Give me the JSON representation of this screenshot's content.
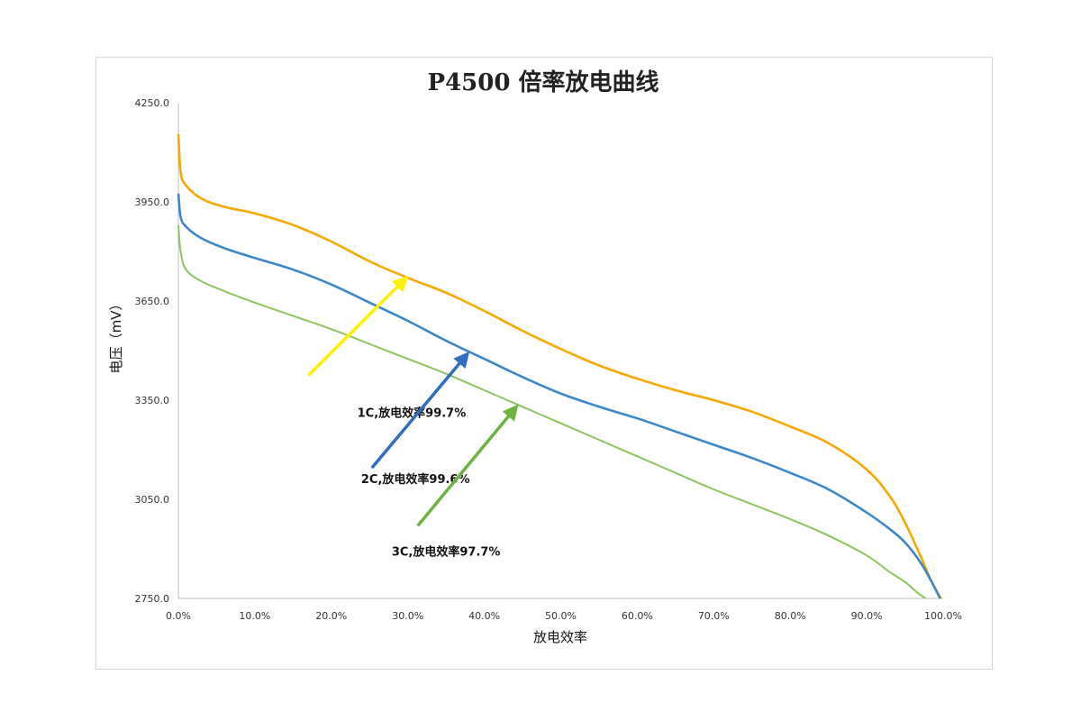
{
  "chart_data": {
    "type": "line",
    "title": "P4500 倍率放电曲线",
    "xlabel": "放电效率",
    "ylabel": "电压（mV）",
    "xlim": [
      0,
      100
    ],
    "ylim": [
      2750,
      4250
    ],
    "x_ticks": [
      "0.0%",
      "10.0%",
      "20.0%",
      "30.0%",
      "40.0%",
      "50.0%",
      "60.0%",
      "70.0%",
      "80.0%",
      "90.0%",
      "100.0%"
    ],
    "y_ticks": [
      "4250.0",
      "3950.0",
      "3650.0",
      "3350.0",
      "3050.0",
      "2750.0"
    ],
    "grid": false,
    "legend": "none",
    "series": [
      {
        "color": "#F5A800",
        "x": [
          0,
          0.3,
          1,
          3,
          6,
          10,
          15,
          20,
          25,
          30,
          35,
          40,
          45,
          50,
          55,
          60,
          65,
          70,
          75,
          80,
          85,
          90,
          93,
          95,
          97,
          98.5,
          99.7
        ],
        "y": [
          4155,
          4040,
          4000,
          3960,
          3935,
          3915,
          3880,
          3830,
          3770,
          3720,
          3675,
          3620,
          3560,
          3505,
          3455,
          3415,
          3380,
          3350,
          3315,
          3270,
          3220,
          3140,
          3060,
          2980,
          2880,
          2800,
          2750
        ]
      },
      {
        "color": "#3B87C8",
        "x": [
          0,
          0.3,
          1,
          3,
          6,
          10,
          15,
          20,
          25,
          30,
          35,
          40,
          45,
          50,
          55,
          60,
          65,
          70,
          75,
          80,
          85,
          90,
          93,
          95,
          97,
          98.5,
          99.6
        ],
        "y": [
          3975,
          3905,
          3875,
          3840,
          3810,
          3780,
          3745,
          3700,
          3645,
          3590,
          3530,
          3475,
          3420,
          3370,
          3330,
          3295,
          3255,
          3215,
          3175,
          3130,
          3080,
          3010,
          2960,
          2920,
          2860,
          2800,
          2750
        ]
      },
      {
        "color": "#8CC460",
        "x": [
          0,
          0.3,
          1,
          3,
          6,
          10,
          15,
          20,
          25,
          30,
          35,
          40,
          45,
          50,
          55,
          60,
          65,
          70,
          75,
          80,
          85,
          90,
          93,
          95,
          96.5,
          97.7
        ],
        "y": [
          3880,
          3800,
          3745,
          3710,
          3680,
          3645,
          3605,
          3565,
          3520,
          3475,
          3430,
          3380,
          3330,
          3280,
          3230,
          3180,
          3130,
          3080,
          3035,
          2990,
          2940,
          2880,
          2830,
          2800,
          2770,
          2750
        ]
      }
    ],
    "annotations": [
      {
        "text": "1C,放电效率99.7%",
        "color": "#FFF200",
        "label_x": 30.5,
        "label_y": 3310,
        "arrow_from": [
          17,
          3425
        ],
        "arrow_to": [
          29.8,
          3720
        ]
      },
      {
        "text": "2C,放电效率99.6%",
        "color": "#2F6FBD",
        "label_x": 31,
        "label_y": 3110,
        "arrow_from": [
          25.3,
          3145
        ],
        "arrow_to": [
          37.8,
          3490
        ]
      },
      {
        "text": "3C,放电效率97.7%",
        "color": "#6DB33F",
        "label_x": 35,
        "label_y": 2890,
        "arrow_from": [
          31.3,
          2970
        ],
        "arrow_to": [
          44.2,
          3330
        ]
      }
    ]
  }
}
